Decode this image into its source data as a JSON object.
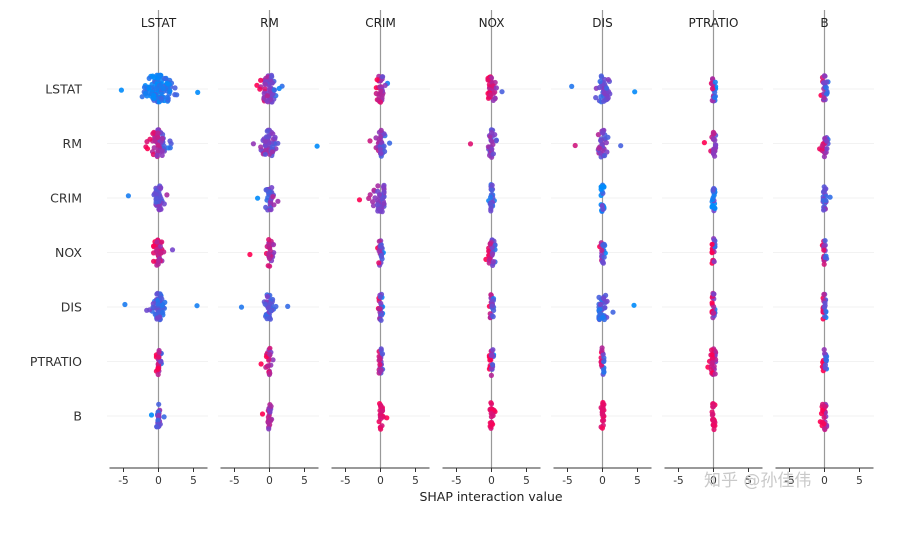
{
  "chart_data": {
    "type": "scatter",
    "title": "",
    "xlabel": "SHAP interaction value",
    "features": [
      "LSTAT",
      "RM",
      "CRIM",
      "NOX",
      "DIS",
      "PTRATIO",
      "B"
    ],
    "xlim": [
      -7,
      7
    ],
    "xticks": [
      -5,
      0,
      5
    ],
    "xtick_labels": [
      "-5",
      "0",
      "5"
    ],
    "color_scale": {
      "low": "#008bfb",
      "high": "#ff0052"
    },
    "grid": false,
    "legend": "none",
    "cells": [
      [
        {
          "min": -5.3,
          "max": 5.6,
          "spread": 2.2,
          "n": 110,
          "bias": 0.0
        },
        {
          "min": -1.8,
          "max": 1.8,
          "spread": 1.2,
          "n": 60,
          "bias": 0.5
        },
        {
          "min": -0.6,
          "max": 1.0,
          "spread": 0.6,
          "n": 35,
          "bias": 0.7
        },
        {
          "min": -0.5,
          "max": 1.5,
          "spread": 0.6,
          "n": 35,
          "bias": 0.8
        },
        {
          "min": -4.4,
          "max": 4.6,
          "spread": 0.9,
          "n": 45,
          "bias": 0.3
        },
        {
          "min": -0.3,
          "max": 0.3,
          "spread": 0.3,
          "n": 20,
          "bias": 0.5
        },
        {
          "min": -0.5,
          "max": 0.5,
          "spread": 0.4,
          "n": 22,
          "bias": 0.5
        }
      ],
      [
        {
          "min": -1.8,
          "max": 1.8,
          "spread": 1.1,
          "n": 70,
          "bias": 0.6
        },
        {
          "min": -2.3,
          "max": 6.8,
          "spread": 1.0,
          "n": 55,
          "bias": 0.5
        },
        {
          "min": -1.5,
          "max": 1.3,
          "spread": 0.7,
          "n": 35,
          "bias": 0.5
        },
        {
          "min": -3.0,
          "max": 0.7,
          "spread": 0.5,
          "n": 28,
          "bias": 0.5
        },
        {
          "min": -3.9,
          "max": 2.6,
          "spread": 0.6,
          "n": 32,
          "bias": 0.5
        },
        {
          "min": -1.3,
          "max": 0.3,
          "spread": 0.4,
          "n": 25,
          "bias": 0.6
        },
        {
          "min": -0.7,
          "max": 0.5,
          "spread": 0.4,
          "n": 22,
          "bias": 0.6
        }
      ],
      [
        {
          "min": -4.3,
          "max": 1.2,
          "spread": 0.6,
          "n": 38,
          "bias": 0.4
        },
        {
          "min": -1.7,
          "max": 1.2,
          "spread": 0.6,
          "n": 30,
          "bias": 0.4
        },
        {
          "min": -3.0,
          "max": 0.5,
          "spread": 1.0,
          "n": 45,
          "bias": 0.5
        },
        {
          "min": -0.4,
          "max": 0.4,
          "spread": 0.3,
          "n": 22,
          "bias": 0.2
        },
        {
          "min": -0.2,
          "max": 0.2,
          "spread": 0.3,
          "n": 20,
          "bias": 0.2
        },
        {
          "min": -0.2,
          "max": 0.2,
          "spread": 0.3,
          "n": 20,
          "bias": 0.2
        },
        {
          "min": -0.2,
          "max": 0.8,
          "spread": 0.3,
          "n": 22,
          "bias": 0.3
        }
      ],
      [
        {
          "min": -0.7,
          "max": 2.0,
          "spread": 0.7,
          "n": 40,
          "bias": 0.8
        },
        {
          "min": -2.8,
          "max": 0.6,
          "spread": 0.5,
          "n": 26,
          "bias": 0.7
        },
        {
          "min": -0.4,
          "max": 0.4,
          "spread": 0.3,
          "n": 22,
          "bias": 0.5
        },
        {
          "min": -0.8,
          "max": 0.5,
          "spread": 0.6,
          "n": 34,
          "bias": 0.6
        },
        {
          "min": -0.4,
          "max": 0.4,
          "spread": 0.3,
          "n": 22,
          "bias": 0.5
        },
        {
          "min": -0.2,
          "max": 0.2,
          "spread": 0.3,
          "n": 20,
          "bias": 0.7
        },
        {
          "min": -0.3,
          "max": 0.3,
          "spread": 0.3,
          "n": 20,
          "bias": 0.6
        }
      ],
      [
        {
          "min": -4.8,
          "max": 5.5,
          "spread": 0.9,
          "n": 60,
          "bias": 0.2
        },
        {
          "min": -4.0,
          "max": 2.6,
          "spread": 0.7,
          "n": 38,
          "bias": 0.3
        },
        {
          "min": -0.3,
          "max": 0.3,
          "spread": 0.3,
          "n": 22,
          "bias": 0.5
        },
        {
          "min": -0.3,
          "max": 0.3,
          "spread": 0.3,
          "n": 22,
          "bias": 0.6
        },
        {
          "min": -0.5,
          "max": 4.5,
          "spread": 0.9,
          "n": 42,
          "bias": 0.2
        },
        {
          "min": -0.2,
          "max": 0.2,
          "spread": 0.3,
          "n": 20,
          "bias": 0.6
        },
        {
          "min": -0.2,
          "max": 0.2,
          "spread": 0.3,
          "n": 20,
          "bias": 0.5
        }
      ],
      [
        {
          "min": -0.3,
          "max": 0.4,
          "spread": 0.4,
          "n": 30,
          "bias": 0.8
        },
        {
          "min": -1.2,
          "max": 0.5,
          "spread": 0.4,
          "n": 25,
          "bias": 0.7
        },
        {
          "min": -0.2,
          "max": 0.3,
          "spread": 0.3,
          "n": 22,
          "bias": 0.6
        },
        {
          "min": -0.3,
          "max": 0.3,
          "spread": 0.3,
          "n": 22,
          "bias": 0.6
        },
        {
          "min": -0.2,
          "max": 0.2,
          "spread": 0.3,
          "n": 20,
          "bias": 0.6
        },
        {
          "min": -0.8,
          "max": 0.3,
          "spread": 0.5,
          "n": 30,
          "bias": 0.8
        },
        {
          "min": -0.3,
          "max": 0.3,
          "spread": 0.3,
          "n": 20,
          "bias": 0.6
        }
      ],
      [
        {
          "min": -1.0,
          "max": 0.8,
          "spread": 0.4,
          "n": 26,
          "bias": 0.3
        },
        {
          "min": -1.0,
          "max": 0.3,
          "spread": 0.3,
          "n": 22,
          "bias": 0.6
        },
        {
          "min": -0.2,
          "max": 0.9,
          "spread": 0.3,
          "n": 22,
          "bias": 0.9
        },
        {
          "min": -0.2,
          "max": 0.5,
          "spread": 0.3,
          "n": 22,
          "bias": 0.9
        },
        {
          "min": -0.2,
          "max": 0.2,
          "spread": 0.3,
          "n": 20,
          "bias": 0.95
        },
        {
          "min": -0.2,
          "max": 0.2,
          "spread": 0.3,
          "n": 20,
          "bias": 0.95
        },
        {
          "min": -0.6,
          "max": 0.3,
          "spread": 0.4,
          "n": 26,
          "bias": 0.8
        }
      ]
    ]
  },
  "watermark": {
    "text": "知乎 @孙佳伟"
  }
}
